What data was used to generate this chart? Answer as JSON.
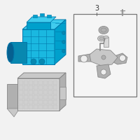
{
  "bg_color": "#f2f2f2",
  "cyan1": "#1ab8e0",
  "cyan2": "#00a0cc",
  "cyan3": "#40ccee",
  "cyan4": "#0888b0",
  "cyan_edge": "#0077aa",
  "gray1": "#c8c8c8",
  "gray2": "#b0b0b0",
  "gray3": "#d8d8d8",
  "gray_edge": "#888888",
  "dark_edge": "#444444",
  "white_bg": "#f8f8f8",
  "label_3": "3",
  "figsize": [
    2.0,
    2.0
  ],
  "dpi": 100
}
